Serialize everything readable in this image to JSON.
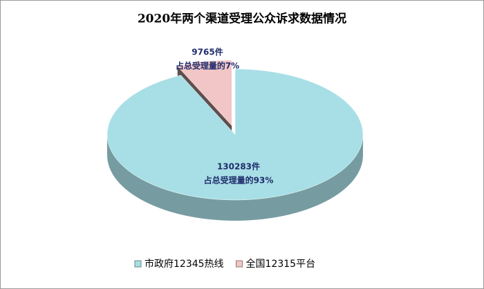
{
  "chart_data": {
    "type": "pie",
    "title": "2020年两个渠道受理公众诉求数据情况",
    "categories": [
      "市政府12345热线",
      "全国12315平台"
    ],
    "values": [
      130283,
      9765
    ],
    "value_labels": [
      "130283件",
      "9765件"
    ],
    "percents": [
      93,
      7
    ],
    "percent_labels": [
      "占总受理量的93%",
      "占总受理量的7%"
    ],
    "colors": [
      "#a8dfe6",
      "#f2c6c6"
    ],
    "legend": "bottom"
  }
}
